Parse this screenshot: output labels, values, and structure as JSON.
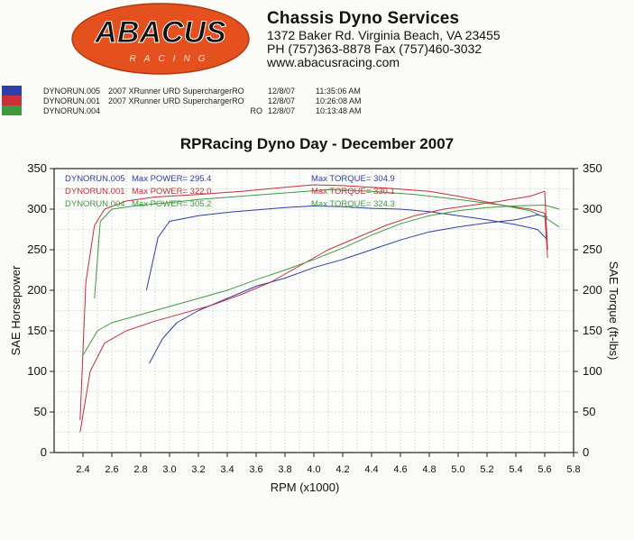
{
  "header": {
    "logo_text": "ABACUS",
    "logo_sub": "RACING",
    "company_name": "Chassis Dyno Services",
    "address": "1372 Baker Rd. Virginia Beach, VA 23455",
    "phone_fax": "PH (757)363-8878 Fax (757)460-3032",
    "website": "www.abacusracing.com"
  },
  "runs": [
    {
      "file": "DYNORUN.005",
      "desc": "2007 XRunner URD SuperchargerRO",
      "date": "12/8/07",
      "time": "11:35:06 AM",
      "color": "#2b3fa8"
    },
    {
      "file": "DYNORUN.001",
      "desc": "2007 XRunner URD SuperchargerRO",
      "date": "12/8/07",
      "time": "10:26:08 AM",
      "color": "#c8303a"
    },
    {
      "file": "DYNORUN.004",
      "desc": "RO",
      "date": "12/8/07",
      "time": "10:13:48 AM",
      "color": "#3f9a3f"
    }
  ],
  "colors": {
    "grid": "#b8b8b8",
    "axis": "#222222"
  },
  "chart_data": {
    "type": "line",
    "title": "RPRacing Dyno Day - December 2007",
    "xlabel": "RPM (x1000)",
    "ylabel": "SAE Horsepower",
    "y2label": "SAE Torque (ft-lbs)",
    "xlim": [
      2.2,
      5.8
    ],
    "ylim": [
      0,
      350
    ],
    "y2lim": [
      0,
      350
    ],
    "xticks": [
      "2.4",
      "2.6",
      "2.8",
      "3.0",
      "3.2",
      "3.4",
      "3.6",
      "3.8",
      "4.0",
      "4.2",
      "4.4",
      "4.6",
      "4.8",
      "5.0",
      "5.2",
      "5.4",
      "5.6",
      "5.8"
    ],
    "yticks": [
      "0",
      "50",
      "100",
      "150",
      "200",
      "250",
      "300",
      "350"
    ],
    "grid": true,
    "legend_placement": "top-left",
    "legend": [
      {
        "run": "DYNORUN.005",
        "power_label": "Max POWER=",
        "power": "295.4",
        "torque_label": "Max TORQUE=",
        "torque": "304.9",
        "color": "#2b3fa8"
      },
      {
        "run": "DYNORUN.001",
        "power_label": "Max POWER=",
        "power": "322.0",
        "torque_label": "Max TORQUE=",
        "torque": "330.1",
        "color": "#c8303a"
      },
      {
        "run": "DYNORUN.004",
        "power_label": "Max POWER=",
        "power": "305.2",
        "torque_label": "Max TORQUE=",
        "torque": "324.3",
        "color": "#3f9a3f"
      }
    ],
    "series": [
      {
        "run": "DYNORUN.005",
        "measure": "power",
        "color": "#2b3fa8",
        "x": [
          2.86,
          2.95,
          3.05,
          3.2,
          3.4,
          3.6,
          3.8,
          4.0,
          4.2,
          4.4,
          4.6,
          4.8,
          5.0,
          5.2,
          5.4,
          5.55,
          5.62
        ],
        "y": [
          110,
          140,
          160,
          175,
          190,
          205,
          215,
          228,
          238,
          250,
          262,
          272,
          278,
          283,
          287,
          293,
          290
        ]
      },
      {
        "run": "DYNORUN.005",
        "measure": "torque",
        "color": "#2b3fa8",
        "x": [
          2.84,
          2.92,
          3.0,
          3.2,
          3.4,
          3.6,
          3.8,
          4.0,
          4.2,
          4.4,
          4.6,
          4.8,
          5.0,
          5.2,
          5.4,
          5.55,
          5.62
        ],
        "y": [
          200,
          265,
          285,
          292,
          296,
          299,
          302,
          304,
          303,
          301,
          300,
          297,
          292,
          287,
          281,
          275,
          262
        ]
      },
      {
        "run": "DYNORUN.001",
        "measure": "power",
        "color": "#c8303a",
        "x": [
          2.38,
          2.45,
          2.55,
          2.7,
          2.9,
          3.1,
          3.3,
          3.5,
          3.7,
          3.9,
          4.1,
          4.3,
          4.5,
          4.7,
          4.9,
          5.1,
          5.3,
          5.5,
          5.6,
          5.62
        ],
        "y": [
          25,
          100,
          135,
          150,
          162,
          172,
          182,
          195,
          210,
          230,
          250,
          265,
          280,
          292,
          300,
          305,
          310,
          316,
          322,
          250
        ]
      },
      {
        "run": "DYNORUN.001",
        "measure": "torque",
        "color": "#c8303a",
        "x": [
          2.38,
          2.42,
          2.48,
          2.55,
          2.7,
          2.9,
          3.2,
          3.5,
          3.8,
          4.0,
          4.2,
          4.5,
          4.8,
          5.0,
          5.3,
          5.5,
          5.6,
          5.62
        ],
        "y": [
          40,
          210,
          280,
          300,
          310,
          315,
          318,
          322,
          327,
          330,
          329,
          326,
          322,
          316,
          305,
          300,
          295,
          240
        ]
      },
      {
        "run": "DYNORUN.004",
        "measure": "power",
        "color": "#3f9a3f",
        "x": [
          2.4,
          2.5,
          2.6,
          2.8,
          3.0,
          3.2,
          3.4,
          3.6,
          3.8,
          4.0,
          4.2,
          4.4,
          4.6,
          4.8,
          5.0,
          5.2,
          5.4,
          5.6,
          5.7
        ],
        "y": [
          120,
          150,
          160,
          170,
          180,
          190,
          200,
          213,
          225,
          238,
          252,
          268,
          282,
          292,
          298,
          302,
          304,
          305,
          300
        ]
      },
      {
        "run": "DYNORUN.004",
        "measure": "torque",
        "color": "#3f9a3f",
        "x": [
          2.48,
          2.52,
          2.6,
          2.8,
          3.0,
          3.2,
          3.5,
          3.8,
          4.1,
          4.4,
          4.7,
          5.0,
          5.3,
          5.5,
          5.6,
          5.7
        ],
        "y": [
          190,
          285,
          300,
          305,
          308,
          312,
          316,
          320,
          324,
          322,
          318,
          312,
          305,
          298,
          290,
          278
        ]
      }
    ]
  }
}
